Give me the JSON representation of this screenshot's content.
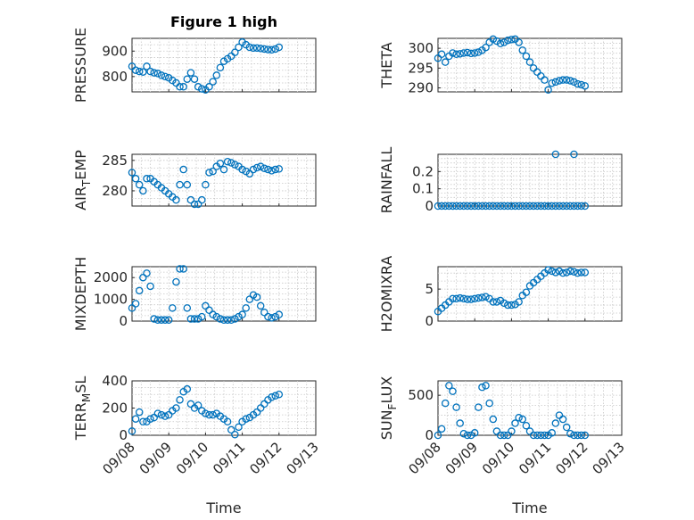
{
  "figure": {
    "title": "Figure 1 high",
    "xlabel": "Time",
    "marker_color": "#0072BD"
  },
  "chart_data": [
    {
      "type": "scatter",
      "key": "pressure",
      "ylabel": "PRESSURE",
      "ylabel_sub": "",
      "xlim": [
        0,
        5
      ],
      "ylim": [
        740,
        950
      ],
      "yticks": [
        800,
        900
      ],
      "ytick_labels": [
        "800",
        "900"
      ],
      "xticks": [
        0,
        1,
        2,
        3,
        4,
        5
      ],
      "xtick_labels": [
        "09/08",
        "09/09",
        "09/10",
        "09/11",
        "09/12",
        "09/13"
      ],
      "show_xtick_labels": false,
      "grid": true,
      "x": [
        0.0,
        0.1,
        0.2,
        0.3,
        0.4,
        0.5,
        0.6,
        0.7,
        0.8,
        0.9,
        1.0,
        1.1,
        1.2,
        1.3,
        1.4,
        1.5,
        1.6,
        1.7,
        1.8,
        1.9,
        2.0,
        2.1,
        2.2,
        2.3,
        2.4,
        2.5,
        2.6,
        2.7,
        2.8,
        2.9,
        3.0,
        3.1,
        3.2,
        3.3,
        3.4,
        3.5,
        3.6,
        3.7,
        3.8,
        3.9,
        4.0
      ],
      "y": [
        840,
        825,
        820,
        818,
        840,
        820,
        815,
        812,
        805,
        800,
        795,
        785,
        775,
        760,
        760,
        790,
        815,
        790,
        760,
        752,
        748,
        760,
        780,
        805,
        835,
        860,
        870,
        880,
        895,
        915,
        935,
        925,
        915,
        912,
        912,
        910,
        908,
        906,
        905,
        908,
        915
      ]
    },
    {
      "type": "scatter",
      "key": "theta",
      "ylabel": "THETA",
      "ylabel_sub": "",
      "xlim": [
        0,
        5
      ],
      "ylim": [
        289,
        302.5
      ],
      "yticks": [
        290,
        295,
        300
      ],
      "ytick_labels": [
        "290",
        "295",
        "300"
      ],
      "xticks": [
        0,
        1,
        2,
        3,
        4,
        5
      ],
      "xtick_labels": [
        "09/08",
        "09/09",
        "09/10",
        "09/11",
        "09/12",
        "09/13"
      ],
      "show_xtick_labels": false,
      "grid": true,
      "x": [
        0.0,
        0.1,
        0.2,
        0.3,
        0.4,
        0.5,
        0.6,
        0.7,
        0.8,
        0.9,
        1.0,
        1.1,
        1.2,
        1.3,
        1.4,
        1.5,
        1.6,
        1.7,
        1.8,
        1.9,
        2.0,
        2.1,
        2.2,
        2.3,
        2.4,
        2.5,
        2.6,
        2.7,
        2.8,
        2.9,
        3.0,
        3.1,
        3.2,
        3.3,
        3.4,
        3.5,
        3.6,
        3.7,
        3.8,
        3.9,
        4.0
      ],
      "y": [
        297.5,
        298.5,
        296.5,
        298.0,
        298.8,
        298.5,
        298.6,
        298.8,
        298.9,
        298.7,
        298.8,
        299.0,
        299.5,
        300.2,
        301.5,
        302.3,
        301.8,
        301.2,
        301.5,
        302.0,
        302.2,
        302.3,
        301.5,
        299.5,
        298.0,
        296.5,
        295.0,
        294.0,
        293.0,
        292.0,
        289.5,
        291.2,
        291.5,
        291.8,
        292.0,
        292.0,
        291.8,
        291.5,
        291.0,
        290.8,
        290.5
      ]
    },
    {
      "type": "scatter",
      "key": "air_temp",
      "ylabel": "AIR",
      "ylabel_sub": "T",
      "ylabel_post": "EMP",
      "xlim": [
        0,
        5
      ],
      "ylim": [
        277.5,
        286
      ],
      "yticks": [
        280,
        285
      ],
      "ytick_labels": [
        "280",
        "285"
      ],
      "xticks": [
        0,
        1,
        2,
        3,
        4,
        5
      ],
      "xtick_labels": [
        "09/08",
        "09/09",
        "09/10",
        "09/11",
        "09/12",
        "09/13"
      ],
      "show_xtick_labels": false,
      "grid": true,
      "x": [
        0.0,
        0.1,
        0.2,
        0.3,
        0.4,
        0.5,
        0.6,
        0.7,
        0.8,
        0.9,
        1.0,
        1.1,
        1.2,
        1.3,
        1.4,
        1.5,
        1.6,
        1.7,
        1.8,
        1.9,
        2.0,
        2.1,
        2.2,
        2.3,
        2.4,
        2.5,
        2.6,
        2.7,
        2.8,
        2.9,
        3.0,
        3.1,
        3.2,
        3.3,
        3.4,
        3.5,
        3.6,
        3.7,
        3.8,
        3.9,
        4.0
      ],
      "y": [
        283.0,
        282.0,
        281.0,
        280.0,
        282.0,
        282.0,
        281.5,
        281.0,
        280.5,
        280.0,
        279.5,
        279.0,
        278.5,
        281.0,
        283.5,
        281.0,
        278.5,
        277.8,
        277.8,
        278.5,
        281.0,
        283.0,
        283.2,
        284.0,
        284.5,
        283.5,
        284.8,
        284.6,
        284.3,
        284.0,
        283.5,
        283.2,
        282.8,
        283.5,
        283.8,
        284.0,
        283.7,
        283.5,
        283.3,
        283.5,
        283.6
      ]
    },
    {
      "type": "scatter",
      "key": "rainfall",
      "ylabel": "RAINFALL",
      "ylabel_sub": "",
      "xlim": [
        0,
        5
      ],
      "ylim": [
        0,
        0.3
      ],
      "yticks": [
        0,
        0.1,
        0.2
      ],
      "ytick_labels": [
        "0",
        "0.1",
        "0.2"
      ],
      "xticks": [
        0,
        1,
        2,
        3,
        4,
        5
      ],
      "xtick_labels": [
        "09/08",
        "09/09",
        "09/10",
        "09/11",
        "09/12",
        "09/13"
      ],
      "show_xtick_labels": false,
      "grid": true,
      "x": [
        0.0,
        0.1,
        0.2,
        0.3,
        0.4,
        0.5,
        0.6,
        0.7,
        0.8,
        0.9,
        1.0,
        1.1,
        1.2,
        1.3,
        1.4,
        1.5,
        1.6,
        1.7,
        1.8,
        1.9,
        2.0,
        2.1,
        2.2,
        2.3,
        2.4,
        2.5,
        2.6,
        2.7,
        2.8,
        2.9,
        3.0,
        3.1,
        3.2,
        3.3,
        3.4,
        3.5,
        3.6,
        3.7,
        3.8,
        3.9,
        4.0,
        3.2,
        3.7
      ],
      "y": [
        0,
        0,
        0,
        0,
        0,
        0,
        0,
        0,
        0,
        0,
        0,
        0,
        0,
        0,
        0,
        0,
        0,
        0,
        0,
        0,
        0,
        0,
        0,
        0,
        0,
        0,
        0,
        0,
        0,
        0,
        0,
        0,
        0,
        0,
        0,
        0,
        0,
        0,
        0,
        0,
        0,
        0.3,
        0.3
      ]
    },
    {
      "type": "scatter",
      "key": "mixdepth",
      "ylabel": "MIXDEPTH",
      "ylabel_sub": "",
      "xlim": [
        0,
        5
      ],
      "ylim": [
        0,
        2500
      ],
      "yticks": [
        0,
        1000,
        2000
      ],
      "ytick_labels": [
        "0",
        "1000",
        "2000"
      ],
      "xticks": [
        0,
        1,
        2,
        3,
        4,
        5
      ],
      "xtick_labels": [
        "09/08",
        "09/09",
        "09/10",
        "09/11",
        "09/12",
        "09/13"
      ],
      "show_xtick_labels": false,
      "grid": true,
      "x": [
        0.0,
        0.1,
        0.2,
        0.3,
        0.4,
        0.5,
        0.6,
        0.7,
        0.8,
        0.9,
        1.0,
        1.1,
        1.2,
        1.3,
        1.4,
        1.5,
        1.6,
        1.7,
        1.8,
        1.9,
        2.0,
        2.1,
        2.2,
        2.3,
        2.4,
        2.5,
        2.6,
        2.7,
        2.8,
        2.9,
        3.0,
        3.1,
        3.2,
        3.3,
        3.4,
        3.5,
        3.6,
        3.7,
        3.8,
        3.9,
        4.0
      ],
      "y": [
        600,
        800,
        1400,
        2000,
        2200,
        1600,
        100,
        50,
        50,
        50,
        50,
        600,
        1800,
        2400,
        2400,
        600,
        100,
        100,
        100,
        200,
        700,
        500,
        300,
        200,
        100,
        50,
        50,
        50,
        100,
        200,
        300,
        600,
        1000,
        1200,
        1100,
        700,
        400,
        200,
        150,
        200,
        300
      ]
    },
    {
      "type": "scatter",
      "key": "h2omixra",
      "ylabel": "H2OMIXRA",
      "ylabel_sub": "",
      "xlim": [
        0,
        5
      ],
      "ylim": [
        0,
        8.5
      ],
      "yticks": [
        0,
        5
      ],
      "ytick_labels": [
        "0",
        "5"
      ],
      "xticks": [
        0,
        1,
        2,
        3,
        4,
        5
      ],
      "xtick_labels": [
        "09/08",
        "09/09",
        "09/10",
        "09/11",
        "09/12",
        "09/13"
      ],
      "show_xtick_labels": false,
      "grid": true,
      "x": [
        0.0,
        0.1,
        0.2,
        0.3,
        0.4,
        0.5,
        0.6,
        0.7,
        0.8,
        0.9,
        1.0,
        1.1,
        1.2,
        1.3,
        1.4,
        1.5,
        1.6,
        1.7,
        1.8,
        1.9,
        2.0,
        2.1,
        2.2,
        2.3,
        2.4,
        2.5,
        2.6,
        2.7,
        2.8,
        2.9,
        3.0,
        3.1,
        3.2,
        3.3,
        3.4,
        3.5,
        3.6,
        3.7,
        3.8,
        3.9,
        4.0
      ],
      "y": [
        1.5,
        2.0,
        2.5,
        3.0,
        3.5,
        3.5,
        3.6,
        3.5,
        3.4,
        3.4,
        3.5,
        3.6,
        3.7,
        3.8,
        3.5,
        3.0,
        3.0,
        3.2,
        2.8,
        2.5,
        2.5,
        2.6,
        3.0,
        4.0,
        4.5,
        5.5,
        6.0,
        6.5,
        7.0,
        7.5,
        8.0,
        7.8,
        7.6,
        7.8,
        7.5,
        7.6,
        7.8,
        7.7,
        7.5,
        7.6,
        7.6
      ]
    },
    {
      "type": "scatter",
      "key": "terr_msl",
      "ylabel": "TERR",
      "ylabel_sub": "M",
      "ylabel_post": "SL",
      "xlim": [
        0,
        5
      ],
      "ylim": [
        0,
        400
      ],
      "yticks": [
        0,
        200,
        400
      ],
      "ytick_labels": [
        "0",
        "200",
        "400"
      ],
      "xticks": [
        0,
        1,
        2,
        3,
        4,
        5
      ],
      "xtick_labels": [
        "09/08",
        "09/09",
        "09/10",
        "09/11",
        "09/12",
        "09/13"
      ],
      "show_xtick_labels": true,
      "grid": true,
      "x": [
        0.0,
        0.1,
        0.2,
        0.3,
        0.4,
        0.5,
        0.6,
        0.7,
        0.8,
        0.9,
        1.0,
        1.1,
        1.2,
        1.3,
        1.4,
        1.5,
        1.6,
        1.7,
        1.8,
        1.9,
        2.0,
        2.1,
        2.2,
        2.3,
        2.4,
        2.5,
        2.6,
        2.7,
        2.8,
        2.9,
        3.0,
        3.1,
        3.2,
        3.3,
        3.4,
        3.5,
        3.6,
        3.7,
        3.8,
        3.9,
        4.0
      ],
      "y": [
        30,
        120,
        170,
        100,
        100,
        120,
        130,
        160,
        150,
        140,
        150,
        180,
        200,
        260,
        320,
        340,
        230,
        200,
        220,
        180,
        160,
        150,
        150,
        160,
        140,
        120,
        100,
        40,
        5,
        60,
        100,
        120,
        130,
        150,
        170,
        200,
        230,
        260,
        280,
        290,
        300
      ]
    },
    {
      "type": "scatter",
      "key": "sun_flux",
      "ylabel": "SUN",
      "ylabel_sub": "F",
      "ylabel_post": "LUX",
      "xlim": [
        0,
        5
      ],
      "ylim": [
        0,
        680
      ],
      "yticks": [
        0,
        500
      ],
      "ytick_labels": [
        "0",
        "500"
      ],
      "xticks": [
        0,
        1,
        2,
        3,
        4,
        5
      ],
      "xtick_labels": [
        "09/08",
        "09/09",
        "09/10",
        "09/11",
        "09/12",
        "09/13"
      ],
      "show_xtick_labels": true,
      "grid": true,
      "x": [
        0.0,
        0.1,
        0.2,
        0.3,
        0.4,
        0.5,
        0.6,
        0.7,
        0.8,
        0.9,
        1.0,
        1.1,
        1.2,
        1.3,
        1.4,
        1.5,
        1.6,
        1.7,
        1.8,
        1.9,
        2.0,
        2.1,
        2.2,
        2.3,
        2.4,
        2.5,
        2.6,
        2.7,
        2.8,
        2.9,
        3.0,
        3.1,
        3.2,
        3.3,
        3.4,
        3.5,
        3.6,
        3.7,
        3.8,
        3.9,
        4.0
      ],
      "y": [
        0,
        80,
        400,
        620,
        550,
        350,
        150,
        20,
        0,
        0,
        30,
        350,
        600,
        620,
        400,
        200,
        50,
        0,
        0,
        0,
        50,
        150,
        220,
        200,
        120,
        50,
        0,
        0,
        0,
        0,
        0,
        30,
        150,
        250,
        200,
        100,
        20,
        0,
        0,
        0,
        0
      ]
    }
  ]
}
